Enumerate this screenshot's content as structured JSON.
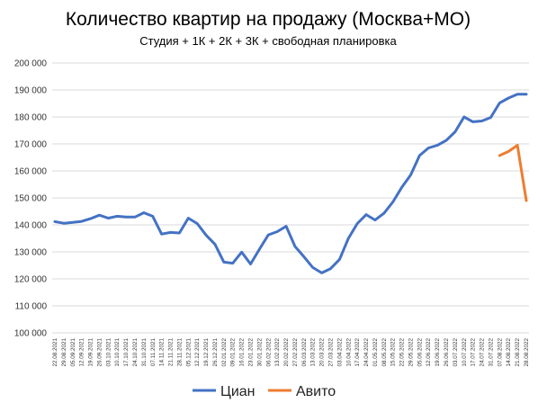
{
  "chart_data": {
    "type": "line",
    "title": "Количество квартир на продажу (Москва+МО)",
    "subtitle": "Студия + 1К + 2К + 3К + свободная планировка",
    "xlabel": "",
    "ylabel": "",
    "ylim": [
      100000,
      200000
    ],
    "y_ticks": [
      "100 000",
      "110 000",
      "120 000",
      "130 000",
      "140 000",
      "150 000",
      "160 000",
      "170 000",
      "180 000",
      "190 000",
      "200 000"
    ],
    "grid": true,
    "legend_position": "bottom",
    "categories": [
      "22.08.2021",
      "29.08.2021",
      "05.09.2021",
      "12.09.2021",
      "19.09.2021",
      "26.09.2021",
      "03.10.2021",
      "10.10.2021",
      "17.10.2021",
      "24.10.2021",
      "31.10.2021",
      "07.11.2021",
      "14.11.2021",
      "21.11.2021",
      "28.11.2021",
      "05.12.2021",
      "12.12.2021",
      "19.12.2021",
      "26.12.2021",
      "02.01.2022",
      "09.01.2022",
      "16.01.2022",
      "23.01.2022",
      "30.01.2022",
      "06.02.2022",
      "13.02.2022",
      "20.02.2022",
      "27.02.2022",
      "06.03.2022",
      "13.03.2022",
      "20.03.2022",
      "27.03.2022",
      "03.04.2022",
      "10.04.2022",
      "17.04.2022",
      "24.04.2022",
      "01.05.2022",
      "08.05.2022",
      "15.05.2022",
      "22.05.2022",
      "29.05.2022",
      "05.06.2022",
      "12.06.2022",
      "19.06.2022",
      "26.06.2022",
      "03.07.2022",
      "10.07.2022",
      "17.07.2022",
      "24.07.2022",
      "31.07.2022",
      "07.08.2022",
      "14.08.2022",
      "21.08.2022",
      "28.08.2022"
    ],
    "series": [
      {
        "name": "Циан",
        "color": "#4472c4",
        "values": [
          141200,
          140600,
          140900,
          141300,
          142300,
          143600,
          142500,
          143200,
          142900,
          142900,
          144500,
          143200,
          136600,
          137200,
          137000,
          142500,
          140500,
          136200,
          132800,
          126200,
          125800,
          129900,
          125500,
          131000,
          136300,
          137500,
          139500,
          132000,
          128200,
          124200,
          122200,
          123800,
          127200,
          135000,
          140500,
          143800,
          141800,
          144300,
          148500,
          153900,
          158500,
          165700,
          168500,
          169500,
          171300,
          174500,
          180000,
          178200,
          178500,
          179800,
          185200,
          187000,
          188400,
          188400
        ]
      },
      {
        "name": "Авито",
        "color": "#ed7d31",
        "values": [
          null,
          null,
          null,
          null,
          null,
          null,
          null,
          null,
          null,
          null,
          null,
          null,
          null,
          null,
          null,
          null,
          null,
          null,
          null,
          null,
          null,
          null,
          null,
          null,
          null,
          null,
          null,
          null,
          null,
          null,
          null,
          null,
          null,
          null,
          null,
          null,
          null,
          null,
          null,
          null,
          null,
          null,
          null,
          null,
          null,
          null,
          null,
          null,
          null,
          null,
          165700,
          167200,
          169500,
          149000
        ]
      }
    ]
  }
}
